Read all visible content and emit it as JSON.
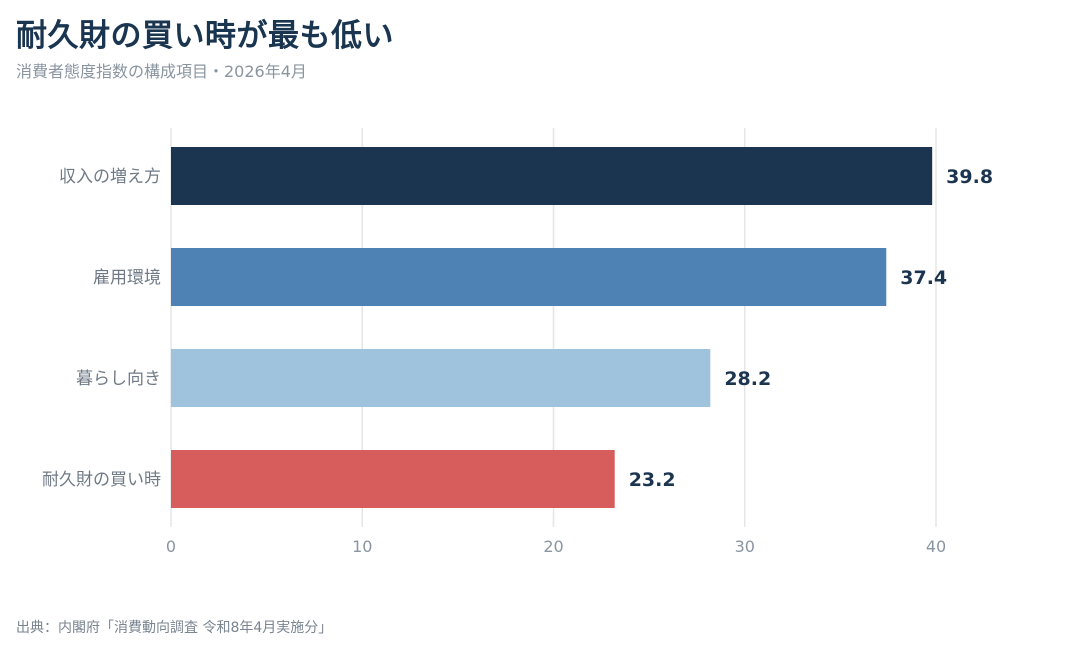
{
  "title": "耐久財の買い時が最も低い",
  "subtitle": "消費者態度指数の構成項目・2026年4月",
  "source": "出典：内閣府「消費動向調査 令和8年4月実施分」",
  "chart_data": {
    "type": "bar",
    "orientation": "horizontal",
    "categories": [
      "収入の増え方",
      "雇用環境",
      "暮らし向き",
      "耐久財の買い時"
    ],
    "values": [
      39.8,
      37.4,
      28.2,
      23.2
    ],
    "value_labels": [
      "39.8",
      "37.4",
      "28.2",
      "23.2"
    ],
    "colors": [
      "#1b344f",
      "#4e82b4",
      "#9fc2dd",
      "#d75c5c"
    ],
    "xlim": [
      0,
      40
    ],
    "xticks": [
      0,
      10,
      20,
      30,
      40
    ],
    "xtick_labels": [
      "0",
      "10",
      "20",
      "30",
      "40"
    ],
    "grid": true,
    "title": "耐久財の買い時が最も低い",
    "xlabel": "",
    "ylabel": ""
  }
}
